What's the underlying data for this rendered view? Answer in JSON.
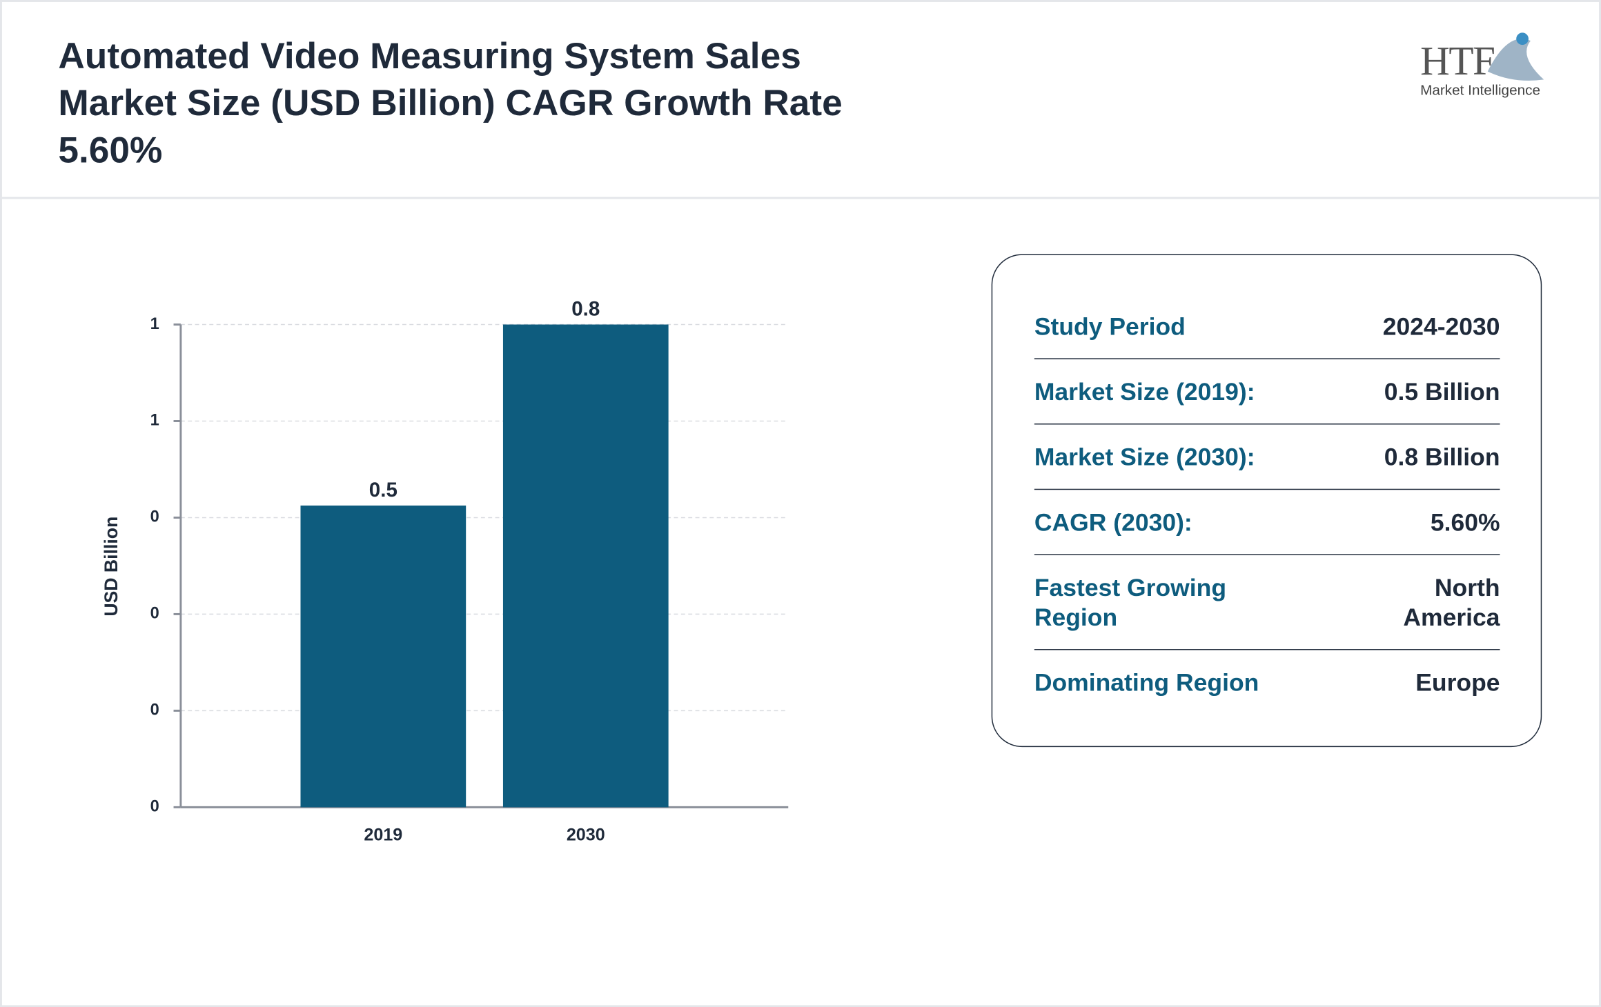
{
  "header": {
    "title": "Automated Video Measuring System Sales Market Size (USD Billion) CAGR Growth Rate 5.60%",
    "logo": {
      "brand": "HTF",
      "tagline": "Market Intelligence"
    }
  },
  "chart_data": {
    "type": "bar",
    "y_label": "USD Billion",
    "categories": [
      "2019",
      "2030"
    ],
    "values": [
      0.5,
      0.8
    ],
    "color": "#0e5c7e",
    "ylim": [
      0,
      0.8
    ],
    "yticks": [
      {
        "value": 0,
        "label": "0"
      },
      {
        "value": 0.16,
        "label": "0"
      },
      {
        "value": 0.32,
        "label": "0"
      },
      {
        "value": 0.48,
        "label": "0"
      },
      {
        "value": 0.64,
        "label": "1"
      },
      {
        "value": 0.8,
        "label": "1"
      }
    ],
    "grid": true
  },
  "summary": {
    "rows": [
      [
        "Study Period",
        "2024-2030"
      ],
      [
        "Market Size (2019):",
        "0.5 Billion"
      ],
      [
        "Market Size (2030):",
        "0.8 Billion"
      ],
      [
        "CAGR (2030):",
        "5.60%"
      ],
      [
        "Fastest Growing Region",
        "North America"
      ],
      [
        "Dominating Region",
        "Europe"
      ]
    ]
  }
}
